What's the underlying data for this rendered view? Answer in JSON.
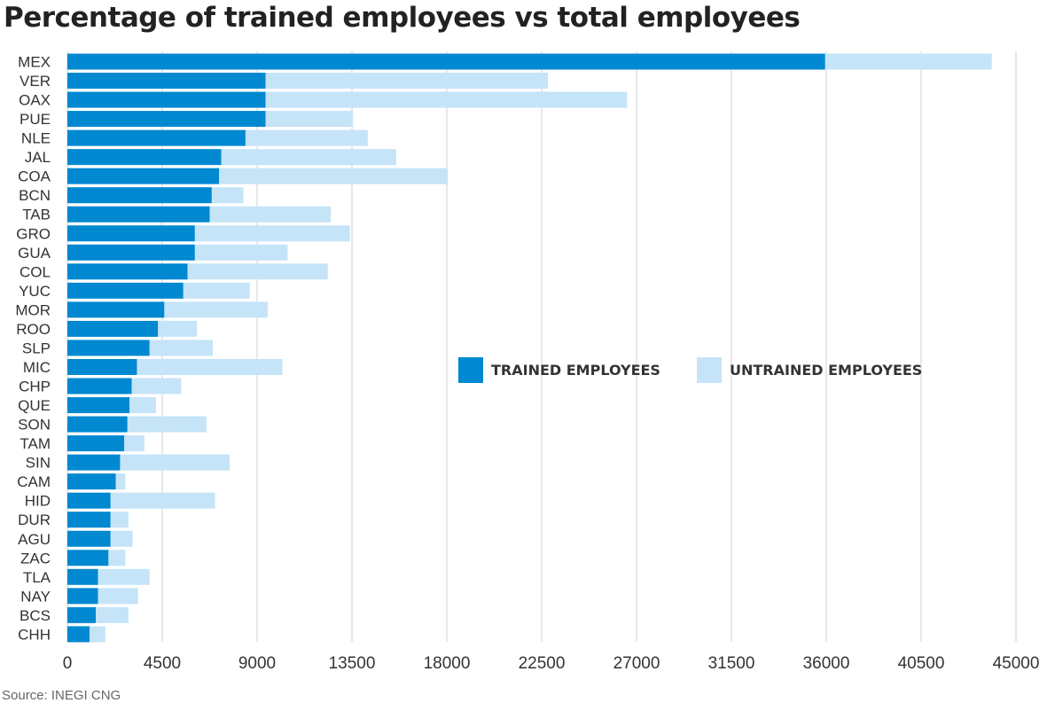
{
  "chart_data": {
    "type": "bar",
    "orientation": "horizontal",
    "stacked": true,
    "title": "Percentage of trained employees vs total employees",
    "source": "Source: INEGI CNG",
    "categories": [
      "MEX",
      "VER",
      "OAX",
      "PUE",
      "NLE",
      "JAL",
      "COA",
      "BCN",
      "TAB",
      "GRO",
      "GUA",
      "COL",
      "YUC",
      "MOR",
      "ROO",
      "SLP",
      "MIC",
      "CHP",
      "QUE",
      "SON",
      "TAM",
      "SIN",
      "CAM",
      "HID",
      "DUR",
      "AGU",
      "ZAC",
      "TLA",
      "NAY",
      "BCS",
      "CHH"
    ],
    "series": [
      {
        "name": "TRAINED EMPLOYEES",
        "color": "#0088d1",
        "values": [
          35950,
          9400,
          9400,
          9400,
          8450,
          7300,
          7200,
          6850,
          6750,
          6050,
          6050,
          5700,
          5500,
          4600,
          4300,
          3900,
          3300,
          3050,
          2950,
          2850,
          2700,
          2500,
          2300,
          2050,
          2050,
          2050,
          1950,
          1450,
          1450,
          1350,
          1050
        ]
      },
      {
        "name": "UNTRAINED EMPLOYEES",
        "color": "#c5e4f8",
        "values": [
          7900,
          13400,
          17150,
          4150,
          5800,
          8300,
          10850,
          1500,
          5750,
          7350,
          4400,
          6650,
          3150,
          4900,
          1850,
          3000,
          6900,
          2350,
          1250,
          3750,
          950,
          5200,
          450,
          4950,
          850,
          1050,
          800,
          2450,
          1900,
          1550,
          750
        ]
      }
    ],
    "xlim": [
      0,
      45000
    ],
    "x_ticks": [
      0,
      4500,
      9000,
      13500,
      18000,
      22500,
      27000,
      31500,
      36000,
      40500,
      45000
    ],
    "x_tick_labels": [
      "0",
      "4500",
      "9000",
      "13500",
      "18000",
      "22500",
      "27000",
      "31500",
      "36000",
      "40500",
      "45000"
    ],
    "grid": "vertical",
    "legend_position": "center-right"
  }
}
